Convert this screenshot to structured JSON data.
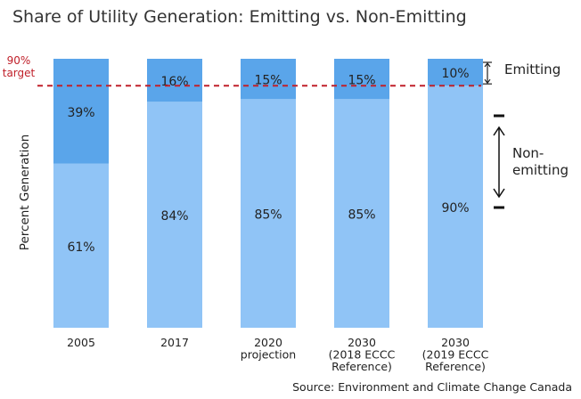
{
  "chart_data": {
    "type": "bar",
    "stacked": true,
    "title": "Share of Utility Generation: Emitting vs. Non-Emitting",
    "ylabel": "Percent Generation",
    "categories": [
      [
        "2005"
      ],
      [
        "2017"
      ],
      [
        "2020",
        "projection"
      ],
      [
        "2030",
        "(2018 ECCC",
        "Reference)"
      ],
      [
        "2030",
        "(2019 ECCC",
        "Reference)"
      ]
    ],
    "series": [
      {
        "name": "Non-emitting",
        "legend_label": [
          "Non-",
          "emitting"
        ],
        "values": [
          61,
          84,
          85,
          85,
          90
        ],
        "color": "#90c4f6"
      },
      {
        "name": "Emitting",
        "legend_label": [
          "Emitting"
        ],
        "values": [
          39,
          16,
          15,
          15,
          10
        ],
        "color": "#5aa5ea"
      }
    ],
    "value_labels": [
      [
        "61%",
        "39%"
      ],
      [
        "84%",
        "16%"
      ],
      [
        "85%",
        "15%"
      ],
      [
        "85%",
        "15%"
      ],
      [
        "90%",
        "10%"
      ]
    ],
    "ylim": [
      0,
      100
    ],
    "grid": false,
    "reference_line": {
      "value": 90,
      "label": [
        "90%",
        "target"
      ],
      "color": "#c0202a"
    },
    "source": "Source: Environment and Climate Change Canada"
  }
}
